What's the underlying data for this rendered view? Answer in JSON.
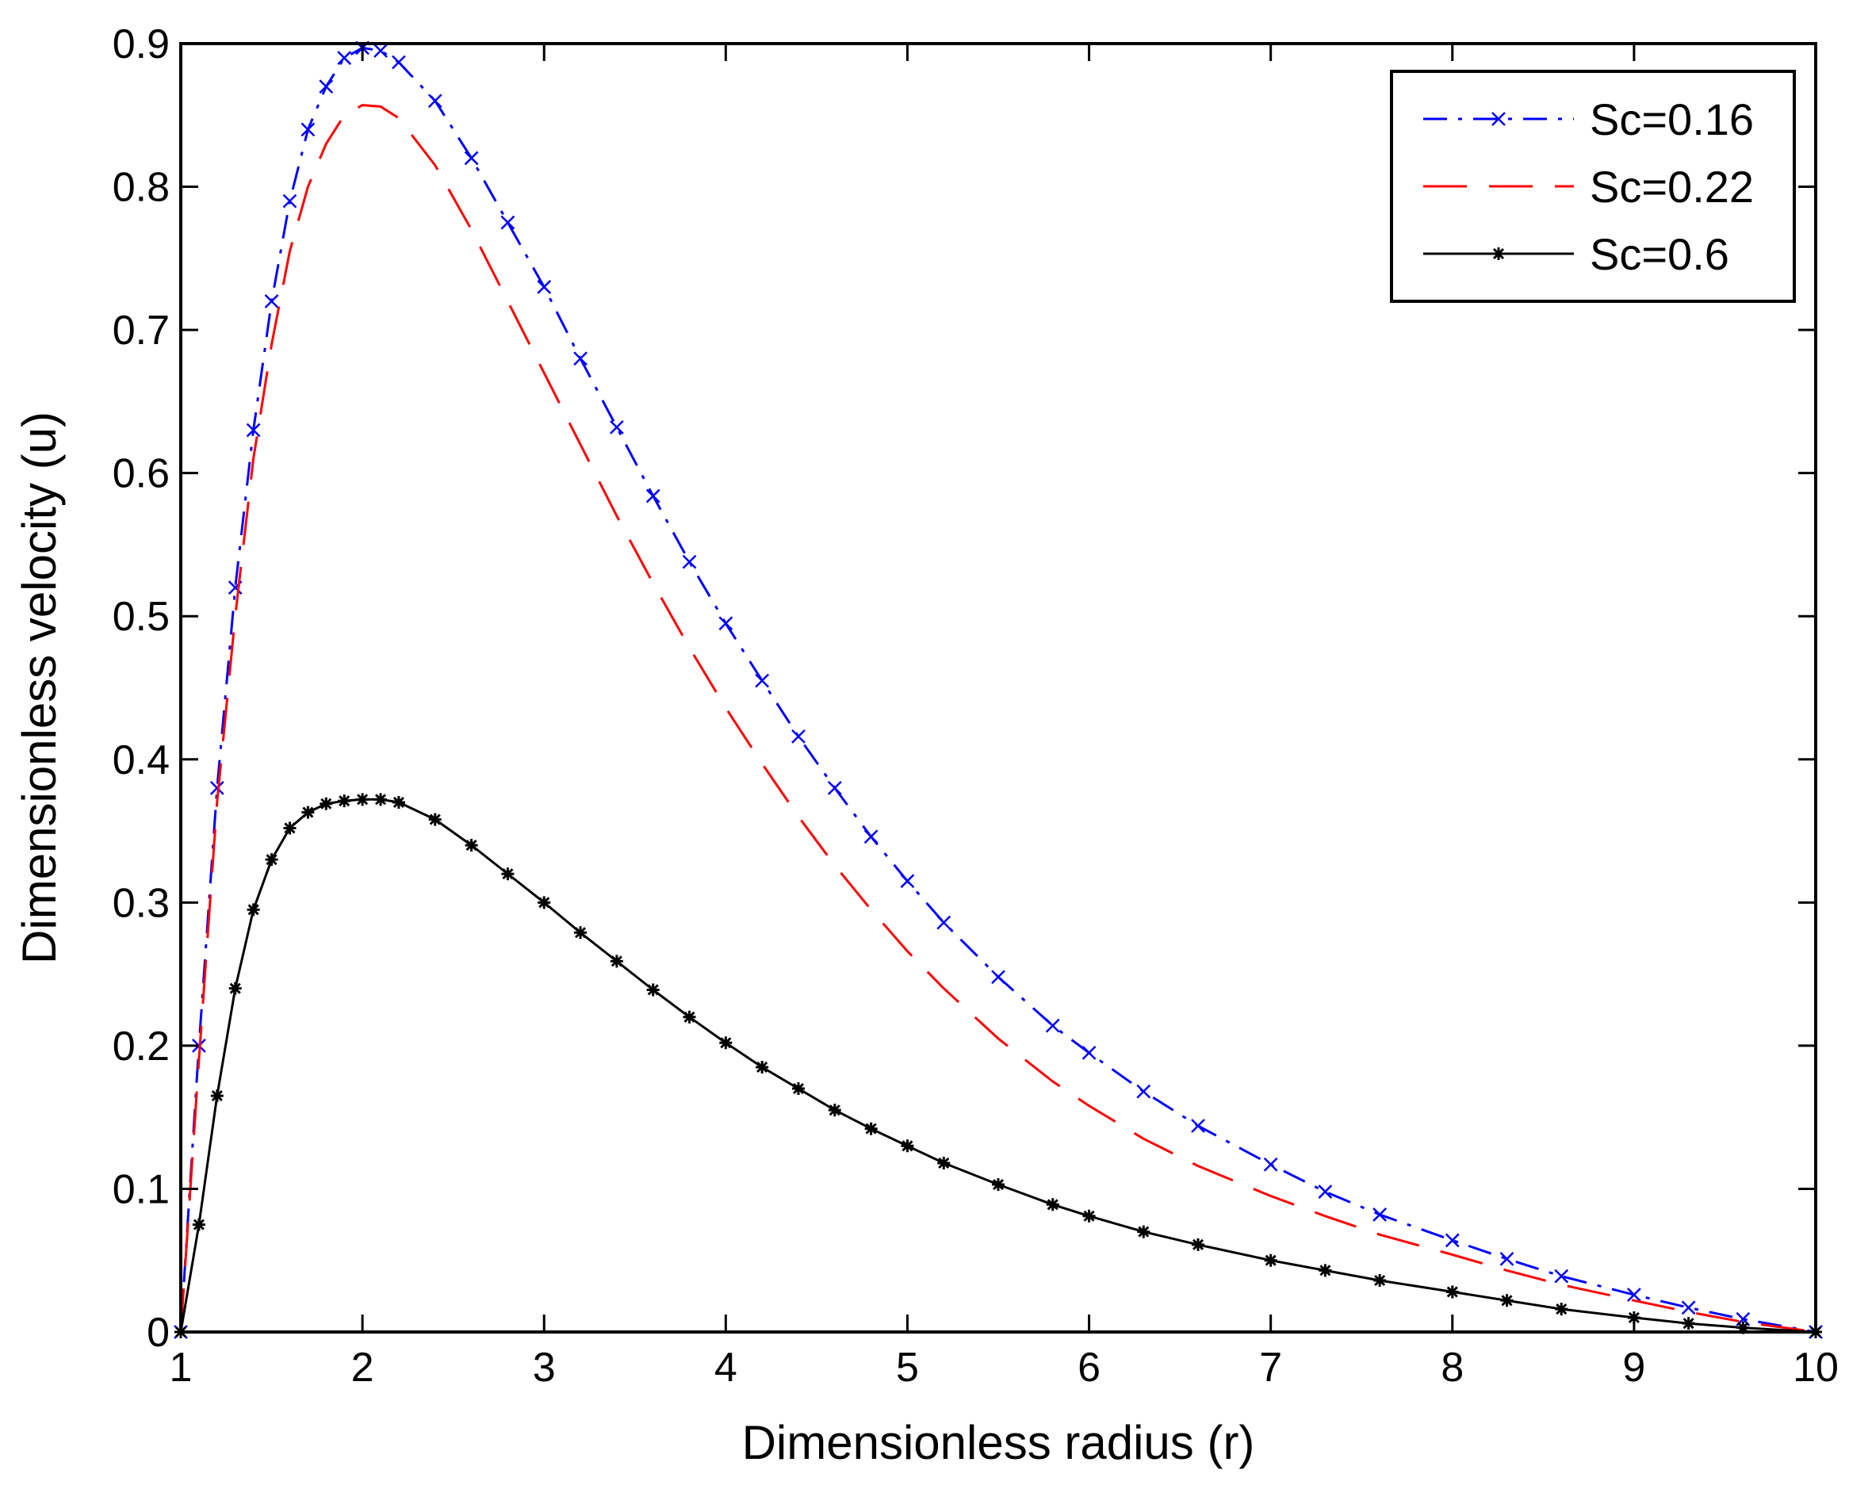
{
  "chart_data": {
    "type": "line",
    "title": "",
    "xlabel": "Dimensionless radius (r)",
    "ylabel": "Dimensionless velocity (u)",
    "xlim": [
      1,
      10
    ],
    "ylim": [
      0,
      0.9
    ],
    "xticks": [
      1,
      2,
      3,
      4,
      5,
      6,
      7,
      8,
      9,
      10
    ],
    "yticks": [
      0,
      0.1,
      0.2,
      0.3,
      0.4,
      0.5,
      0.6,
      0.7,
      0.8,
      0.9
    ],
    "xtick_labels": [
      "1",
      "2",
      "3",
      "4",
      "5",
      "6",
      "7",
      "8",
      "9",
      "10"
    ],
    "ytick_labels": [
      "0",
      "0.1",
      "0.2",
      "0.3",
      "0.4",
      "0.5",
      "0.6",
      "0.7",
      "0.8",
      "0.9"
    ],
    "grid": false,
    "legend_position": "top-right",
    "series": [
      {
        "name": "Sc=0.16",
        "color": "#0000ff",
        "line_style": "dash-dot",
        "marker": "x",
        "x": [
          1.0,
          1.1,
          1.2,
          1.3,
          1.4,
          1.5,
          1.6,
          1.7,
          1.8,
          1.9,
          2.0,
          2.1,
          2.2,
          2.4,
          2.6,
          2.8,
          3.0,
          3.2,
          3.4,
          3.6,
          3.8,
          4.0,
          4.2,
          4.4,
          4.6,
          4.8,
          5.0,
          5.2,
          5.5,
          5.8,
          6.0,
          6.3,
          6.6,
          7.0,
          7.3,
          7.6,
          8.0,
          8.3,
          8.6,
          9.0,
          9.3,
          9.6,
          10.0
        ],
        "y": [
          0.0,
          0.2,
          0.38,
          0.52,
          0.63,
          0.72,
          0.79,
          0.84,
          0.87,
          0.89,
          0.897,
          0.895,
          0.887,
          0.86,
          0.82,
          0.775,
          0.73,
          0.68,
          0.632,
          0.584,
          0.538,
          0.495,
          0.455,
          0.416,
          0.38,
          0.346,
          0.315,
          0.286,
          0.248,
          0.214,
          0.195,
          0.168,
          0.144,
          0.117,
          0.098,
          0.082,
          0.064,
          0.051,
          0.039,
          0.026,
          0.017,
          0.009,
          0.0
        ]
      },
      {
        "name": "Sc=0.22",
        "color": "#ff0000",
        "line_style": "dashed",
        "marker": "none",
        "x": [
          1.0,
          1.1,
          1.2,
          1.3,
          1.4,
          1.5,
          1.6,
          1.7,
          1.8,
          1.9,
          2.0,
          2.1,
          2.2,
          2.4,
          2.6,
          2.8,
          3.0,
          3.2,
          3.4,
          3.6,
          3.8,
          4.0,
          4.2,
          4.4,
          4.6,
          4.8,
          5.0,
          5.2,
          5.5,
          5.8,
          6.0,
          6.3,
          6.6,
          7.0,
          7.3,
          7.6,
          8.0,
          8.3,
          8.6,
          9.0,
          9.3,
          9.6,
          10.0
        ],
        "y": [
          0.0,
          0.19,
          0.37,
          0.5,
          0.61,
          0.69,
          0.755,
          0.8,
          0.83,
          0.85,
          0.857,
          0.856,
          0.848,
          0.815,
          0.77,
          0.72,
          0.67,
          0.62,
          0.57,
          0.523,
          0.478,
          0.436,
          0.397,
          0.36,
          0.326,
          0.295,
          0.266,
          0.24,
          0.205,
          0.175,
          0.158,
          0.135,
          0.116,
          0.095,
          0.081,
          0.068,
          0.054,
          0.043,
          0.033,
          0.022,
          0.014,
          0.007,
          0.0
        ]
      },
      {
        "name": "Sc=0.6",
        "color": "#000000",
        "line_style": "solid",
        "marker": "*",
        "x": [
          1.0,
          1.1,
          1.2,
          1.3,
          1.4,
          1.5,
          1.6,
          1.7,
          1.8,
          1.9,
          2.0,
          2.1,
          2.2,
          2.4,
          2.6,
          2.8,
          3.0,
          3.2,
          3.4,
          3.6,
          3.8,
          4.0,
          4.2,
          4.4,
          4.6,
          4.8,
          5.0,
          5.2,
          5.5,
          5.8,
          6.0,
          6.3,
          6.6,
          7.0,
          7.3,
          7.6,
          8.0,
          8.3,
          8.6,
          9.0,
          9.3,
          9.6,
          10.0
        ],
        "y": [
          0.0,
          0.075,
          0.165,
          0.24,
          0.295,
          0.33,
          0.352,
          0.363,
          0.369,
          0.371,
          0.372,
          0.372,
          0.37,
          0.358,
          0.34,
          0.32,
          0.3,
          0.279,
          0.259,
          0.239,
          0.22,
          0.202,
          0.185,
          0.17,
          0.155,
          0.142,
          0.13,
          0.118,
          0.103,
          0.089,
          0.081,
          0.07,
          0.061,
          0.05,
          0.043,
          0.036,
          0.028,
          0.022,
          0.016,
          0.01,
          0.006,
          0.003,
          0.0
        ]
      }
    ]
  }
}
